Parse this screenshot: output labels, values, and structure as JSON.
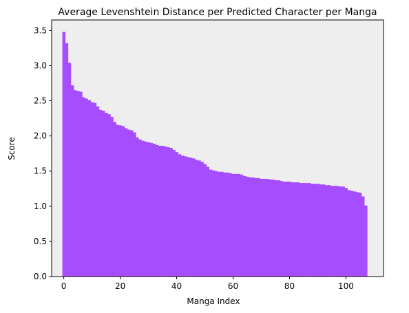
{
  "chart_data": {
    "type": "bar",
    "title": "Average Levenshtein Distance per Predicted Character per Manga",
    "xlabel": "Manga Index",
    "ylabel": "Score",
    "xlim": [
      -4.3,
      113.3
    ],
    "ylim": [
      0.0,
      3.65
    ],
    "xticks": [
      0,
      20,
      40,
      60,
      80,
      100
    ],
    "yticks": [
      0.0,
      0.5,
      1.0,
      1.5,
      2.0,
      2.5,
      3.0,
      3.5
    ],
    "xtick_labels": [
      "0",
      "20",
      "40",
      "60",
      "80",
      "100"
    ],
    "ytick_labels": [
      "0.0",
      "0.5",
      "1.0",
      "1.5",
      "2.0",
      "2.5",
      "3.0",
      "3.5"
    ],
    "grid": false,
    "background": "#eeeeee",
    "bar_color": "#a64dff",
    "values": [
      3.48,
      3.32,
      3.04,
      2.72,
      2.65,
      2.64,
      2.63,
      2.55,
      2.53,
      2.51,
      2.48,
      2.47,
      2.42,
      2.37,
      2.36,
      2.33,
      2.31,
      2.27,
      2.2,
      2.16,
      2.15,
      2.14,
      2.11,
      2.09,
      2.08,
      2.05,
      1.98,
      1.95,
      1.93,
      1.92,
      1.91,
      1.9,
      1.89,
      1.87,
      1.86,
      1.86,
      1.85,
      1.84,
      1.83,
      1.8,
      1.77,
      1.74,
      1.72,
      1.71,
      1.7,
      1.69,
      1.68,
      1.66,
      1.65,
      1.63,
      1.6,
      1.56,
      1.52,
      1.51,
      1.5,
      1.49,
      1.49,
      1.48,
      1.48,
      1.47,
      1.46,
      1.46,
      1.46,
      1.45,
      1.43,
      1.42,
      1.41,
      1.41,
      1.4,
      1.4,
      1.39,
      1.39,
      1.39,
      1.38,
      1.38,
      1.37,
      1.37,
      1.36,
      1.35,
      1.35,
      1.35,
      1.34,
      1.34,
      1.34,
      1.33,
      1.33,
      1.33,
      1.33,
      1.32,
      1.32,
      1.32,
      1.31,
      1.31,
      1.3,
      1.3,
      1.29,
      1.29,
      1.29,
      1.28,
      1.28,
      1.26,
      1.23,
      1.22,
      1.21,
      1.2,
      1.19,
      1.14,
      1.01
    ]
  }
}
